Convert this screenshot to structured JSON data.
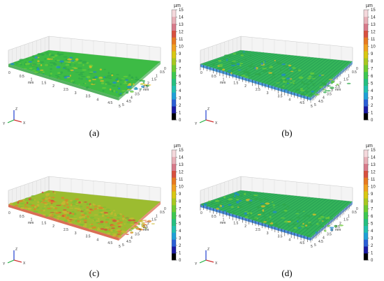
{
  "colorbar": {
    "unit": "µm",
    "ticks": [
      "0",
      "1",
      "2",
      "3",
      "4",
      "5",
      "6",
      "7",
      "8",
      "9",
      "10",
      "11",
      "12",
      "13",
      "14",
      "15"
    ],
    "colors": [
      "#000000",
      "#1a1aa0",
      "#2a5fd6",
      "#1fa0d8",
      "#22c0b0",
      "#25c080",
      "#3cc850",
      "#70cc30",
      "#a8c820",
      "#d8c810",
      "#f0a020",
      "#e87a20",
      "#d85040",
      "#d87a8a",
      "#e8b0b8",
      "#f4d8dc"
    ]
  },
  "axis": {
    "mm_label": "mm",
    "x_ticks": [
      "0",
      "0.5",
      "1",
      "1.5",
      "2",
      "2.5",
      "3",
      "3.5",
      "4",
      "4.5",
      "5"
    ],
    "y_ticks": [
      "5",
      "4.5",
      "4",
      "3.5",
      "3",
      "2.5",
      "2",
      "1.5",
      "1",
      "0.5",
      "0"
    ],
    "z_label": "Z",
    "y_label": "Y",
    "x_label": "X"
  },
  "panels": [
    {
      "caption": "(a)",
      "surface_color": "#3dbb45",
      "accent": "#2a9d3a",
      "ridged": false,
      "rough": 0.6
    },
    {
      "caption": "(b)",
      "surface_color": "#35b55a",
      "accent": "#1f7fd0",
      "ridged": true,
      "rough": 0.3
    },
    {
      "caption": "(c)",
      "surface_color": "#9cbc30",
      "accent": "#d04a2a",
      "ridged": false,
      "rough": 1.0
    },
    {
      "caption": "(d)",
      "surface_color": "#34b35a",
      "accent": "#1f6fd0",
      "ridged": true,
      "rough": 0.3
    }
  ]
}
